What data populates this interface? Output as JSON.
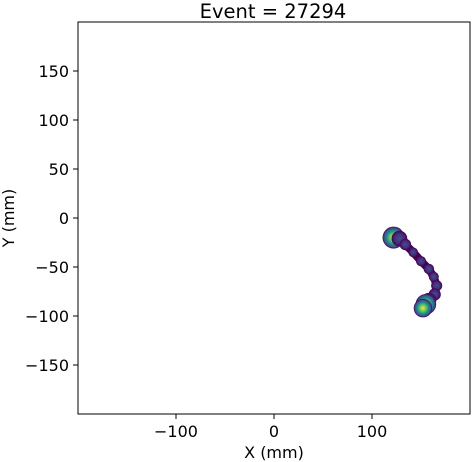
{
  "chart_data": {
    "type": "heatmap",
    "title": "Event = 27294",
    "xlabel": "X (mm)",
    "ylabel": "Y (mm)",
    "xlim": [
      -200,
      200
    ],
    "ylim": [
      -200,
      200
    ],
    "x_ticks": [
      -100,
      0,
      100
    ],
    "y_ticks": [
      150,
      100,
      50,
      0,
      -50,
      -100,
      -150
    ],
    "x_tick_labels": [
      "−100",
      "0",
      "100"
    ],
    "y_tick_labels": [
      "150",
      "100",
      "50",
      "0",
      "−50",
      "−100",
      "−150"
    ],
    "grid": false,
    "colormap": "viridis",
    "colors": {
      "low": "#440154",
      "mid": "#3b528b",
      "high": "#fde725",
      "frame": "#000000"
    },
    "track_points": [
      {
        "x": 122,
        "y": -20,
        "intensity": 1.0
      },
      {
        "x": 128,
        "y": -21,
        "intensity": 0.55
      },
      {
        "x": 134,
        "y": -27,
        "intensity": 0.25
      },
      {
        "x": 142,
        "y": -35,
        "intensity": 0.12
      },
      {
        "x": 150,
        "y": -44,
        "intensity": 0.15
      },
      {
        "x": 158,
        "y": -52,
        "intensity": 0.18
      },
      {
        "x": 163,
        "y": -60,
        "intensity": 0.15
      },
      {
        "x": 166,
        "y": -69,
        "intensity": 0.22
      },
      {
        "x": 164,
        "y": -78,
        "intensity": 0.3
      },
      {
        "x": 158,
        "y": -84,
        "intensity": 0.5
      },
      {
        "x": 155,
        "y": -88,
        "intensity": 0.9
      },
      {
        "x": 152,
        "y": -92,
        "intensity": 0.75
      }
    ]
  }
}
